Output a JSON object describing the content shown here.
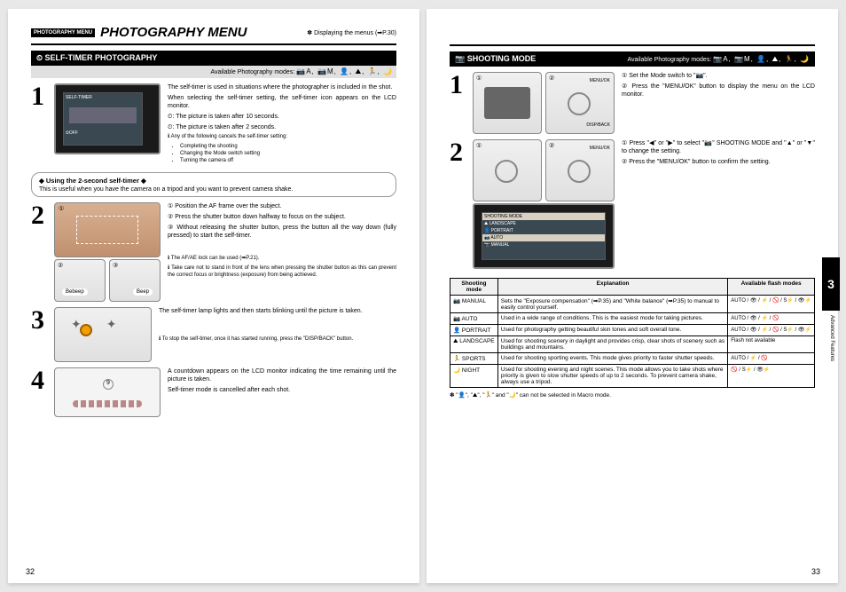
{
  "left_page": {
    "tag": "PHOTOGRAPHY MENU",
    "title": "PHOTOGRAPHY MENU",
    "header_right": "✽ Displaying the menus (➡P.30)",
    "section_title": "⏲ SELF-TIMER PHOTOGRAPHY",
    "avail_label": "Available Photography modes:",
    "avail_icons": "📷A, 📷M, 👤, ⛰, 🏃, 🌙",
    "step1": {
      "p1": "The self-timer is used in situations where the photographer is included in the shot.",
      "p2": "When selecting the self-timer setting, the self-timer icon appears on the LCD monitor.",
      "b1": "⏲: The picture is taken after 10 seconds.",
      "b2": "⏲: The picture is taken after 2 seconds.",
      "note_head": "ℹ Any of the following cancels the self-timer setting:",
      "note1": "Completing the shooting",
      "note2": "Changing the Mode switch setting",
      "note3": "Turning the camera off"
    },
    "callout_head": "◆ Using the 2-second self-timer ◆",
    "callout_body": "This is useful when you have the camera on a tripod and you want to prevent camera shake.",
    "step2": {
      "l1": "① Position the AF frame over the subject.",
      "l2": "② Press the shutter button down halfway to focus on the subject.",
      "l3": "③ Without releasing the shutter button, press the button all the way down (fully pressed) to start the self-timer.",
      "n1": "ℹ The AF/AE lock can be used (➡P.21).",
      "n2": "ℹ Take care not to stand in front of the lens when pressing the shutter button as this can prevent the correct focus or brightness (exposure) from being achieved.",
      "beep1": "Bebeep",
      "beep2": "Beep"
    },
    "step3": {
      "p1": "The self-timer lamp lights and then starts blinking until the picture is taken.",
      "n1": "ℹ To stop the self-timer, once it has started running, press the \"DISP/BACK\" button."
    },
    "step4": {
      "p1": "A countdown appears on the LCD monitor indicating the time remaining until the picture is taken.",
      "p2": "Self-timer mode is cancelled after each shot."
    },
    "page_num": "32"
  },
  "right_page": {
    "section_title": "📷 SHOOTING MODE",
    "avail_label": "Available Photography modes:",
    "avail_icons": "📷A, 📷M, 👤, ⛰, 🏃, 🌙",
    "step1": {
      "l1": "① Set the Mode switch to \"📷\".",
      "l2": "② Press the \"MENU/OK\" button to display the menu on the LCD monitor.",
      "btn1": "MENU/OK",
      "btn2": "DISP/BACK"
    },
    "step2": {
      "l1": "① Press \"◀\" or \"▶\" to select \"📷\" SHOOTING MODE and \"▲\" or \"▼\" to change the setting.",
      "l2": "② Press the \"MENU/OK\" button to confirm the setting.",
      "btn1": "MENU/OK",
      "menu_title": "SHOOTING MODE",
      "m1": "⛰ LANDSCAPE",
      "m2": "👤 PORTRAIT",
      "m3": "📷 AUTO",
      "m4": "📷 MANUAL"
    },
    "table": {
      "h1": "Shooting mode",
      "h2": "Explanation",
      "h3": "Available flash modes",
      "rows": [
        {
          "mode": "📷 MANUAL",
          "exp": "Sets the \"Exposure compensation\" (➡P.35) and \"White balance\" (➡P.35) to manual to easily control yourself.",
          "flash": "AUTO / 👁 / ⚡ / 🚫 / S⚡ / 👁⚡"
        },
        {
          "mode": "📷 AUTO",
          "exp": "Used in a wide range of conditions. This is the easiest mode for taking pictures.",
          "flash": "AUTO / 👁 / ⚡ / 🚫"
        },
        {
          "mode": "👤 PORTRAIT",
          "exp": "Used for photography getting beautiful skin tones and soft overall tone.",
          "flash": "AUTO / 👁 / ⚡ / 🚫 / S⚡ / 👁⚡"
        },
        {
          "mode": "⛰ LANDSCAPE",
          "exp": "Used for shooting scenery in daylight and provides crisp, clear shots of scenery such as buildings and mountains.",
          "flash": "Flash not available"
        },
        {
          "mode": "🏃 SPORTS",
          "exp": "Used for shooting sporting events. This mode gives priority to faster shutter speeds.",
          "flash": "AUTO / ⚡ / 🚫"
        },
        {
          "mode": "🌙 NIGHT",
          "exp": "Used for shooting evening and night scenes. This mode allows you to take shots where priority is given to slow shutter speeds of up to 2 seconds. To prevent camera shake, always use a tripod.",
          "flash": "🚫 / S⚡ / 👁⚡"
        }
      ]
    },
    "table_note": "✽ \"👤\", \"⛰\", \"🏃\" and \"🌙\" can not be selected in Macro mode.",
    "page_num": "33",
    "side_tab": "3",
    "side_vert": "Advanced Features"
  }
}
